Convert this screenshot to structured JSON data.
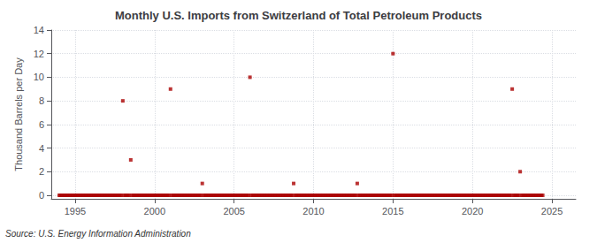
{
  "chart_data": {
    "type": "scatter",
    "title": "Monthly U.S. Imports from Switzerland of Total Petroleum Products",
    "ylabel": "Thousand Barrels per Day",
    "annotation": "Source: U.S. Energy Information Administration",
    "color": "#aa0000",
    "marker": "square",
    "grid": true,
    "xlim": [
      1993.5,
      2026.5
    ],
    "xticks": [
      1995,
      2000,
      2005,
      2010,
      2015,
      2020,
      2025
    ],
    "ylim": [
      -0.3,
      14
    ],
    "yticks": [
      0,
      2,
      4,
      6,
      8,
      10,
      12,
      14
    ],
    "x": [
      1994.0,
      1994.08,
      1994.17,
      1994.25,
      1994.33,
      1994.42,
      1994.5,
      1994.58,
      1994.67,
      1994.75,
      1994.83,
      1994.92,
      1995.0,
      1995.08,
      1995.17,
      1995.25,
      1995.33,
      1995.42,
      1995.5,
      1995.58,
      1995.67,
      1995.75,
      1995.83,
      1995.92,
      1996.0,
      1996.08,
      1996.17,
      1996.25,
      1996.33,
      1996.42,
      1996.5,
      1996.58,
      1996.67,
      1996.75,
      1996.83,
      1996.92,
      1997.0,
      1997.08,
      1997.17,
      1997.25,
      1997.33,
      1997.42,
      1997.5,
      1997.58,
      1997.67,
      1997.75,
      1997.83,
      1997.92,
      1998.0,
      1998.08,
      1998.17,
      1998.25,
      1998.33,
      1998.42,
      1998.5,
      1998.58,
      1998.67,
      1998.75,
      1998.83,
      1998.92,
      1999.0,
      1999.08,
      1999.17,
      1999.25,
      1999.33,
      1999.42,
      1999.5,
      1999.58,
      1999.67,
      1999.75,
      1999.83,
      1999.92,
      2000.0,
      2000.08,
      2000.17,
      2000.25,
      2000.33,
      2000.42,
      2000.5,
      2000.58,
      2000.67,
      2000.75,
      2000.83,
      2000.92,
      2001.0,
      2001.08,
      2001.17,
      2001.25,
      2001.33,
      2001.42,
      2001.5,
      2001.58,
      2001.67,
      2001.75,
      2001.83,
      2001.92,
      2002.0,
      2002.08,
      2002.17,
      2002.25,
      2002.33,
      2002.42,
      2002.5,
      2002.58,
      2002.67,
      2002.75,
      2002.83,
      2002.92,
      2003.0,
      2003.08,
      2003.17,
      2003.25,
      2003.33,
      2003.42,
      2003.5,
      2003.58,
      2003.67,
      2003.75,
      2003.83,
      2003.92,
      2004.0,
      2004.08,
      2004.17,
      2004.25,
      2004.33,
      2004.42,
      2004.5,
      2004.58,
      2004.67,
      2004.75,
      2004.83,
      2004.92,
      2005.0,
      2005.08,
      2005.17,
      2005.25,
      2005.33,
      2005.42,
      2005.5,
      2005.58,
      2005.67,
      2005.75,
      2005.83,
      2005.92,
      2006.0,
      2006.08,
      2006.17,
      2006.25,
      2006.33,
      2006.42,
      2006.5,
      2006.58,
      2006.67,
      2006.75,
      2006.83,
      2006.92,
      2007.0,
      2007.08,
      2007.17,
      2007.25,
      2007.33,
      2007.42,
      2007.5,
      2007.58,
      2007.67,
      2007.75,
      2007.83,
      2007.92,
      2008.0,
      2008.08,
      2008.17,
      2008.25,
      2008.33,
      2008.42,
      2008.5,
      2008.58,
      2008.67,
      2008.75,
      2008.83,
      2008.92,
      2009.0,
      2009.08,
      2009.17,
      2009.25,
      2009.33,
      2009.42,
      2009.5,
      2009.58,
      2009.67,
      2009.75,
      2009.83,
      2009.92,
      2010.0,
      2010.08,
      2010.17,
      2010.25,
      2010.33,
      2010.42,
      2010.5,
      2010.58,
      2010.67,
      2010.75,
      2010.83,
      2010.92,
      2011.0,
      2011.08,
      2011.17,
      2011.25,
      2011.33,
      2011.42,
      2011.5,
      2011.58,
      2011.67,
      2011.75,
      2011.83,
      2011.92,
      2012.0,
      2012.08,
      2012.17,
      2012.25,
      2012.33,
      2012.42,
      2012.5,
      2012.58,
      2012.67,
      2012.75,
      2012.83,
      2012.92,
      2013.0,
      2013.08,
      2013.17,
      2013.25,
      2013.33,
      2013.42,
      2013.5,
      2013.58,
      2013.67,
      2013.75,
      2013.83,
      2013.92,
      2014.0,
      2014.08,
      2014.17,
      2014.25,
      2014.33,
      2014.42,
      2014.5,
      2014.58,
      2014.67,
      2014.75,
      2014.83,
      2014.92,
      2015.0,
      2015.08,
      2015.17,
      2015.25,
      2015.33,
      2015.42,
      2015.5,
      2015.58,
      2015.67,
      2015.75,
      2015.83,
      2015.92,
      2016.0,
      2016.08,
      2016.17,
      2016.25,
      2016.33,
      2016.42,
      2016.5,
      2016.58,
      2016.67,
      2016.75,
      2016.83,
      2016.92,
      2017.0,
      2017.08,
      2017.17,
      2017.25,
      2017.33,
      2017.42,
      2017.5,
      2017.58,
      2017.67,
      2017.75,
      2017.83,
      2017.92,
      2018.0,
      2018.08,
      2018.17,
      2018.25,
      2018.33,
      2018.42,
      2018.5,
      2018.58,
      2018.67,
      2018.75,
      2018.83,
      2018.92,
      2019.0,
      2019.08,
      2019.17,
      2019.25,
      2019.33,
      2019.42,
      2019.5,
      2019.58,
      2019.67,
      2019.75,
      2019.83,
      2019.92,
      2020.0,
      2020.08,
      2020.17,
      2020.25,
      2020.33,
      2020.42,
      2020.5,
      2020.58,
      2020.67,
      2020.75,
      2020.83,
      2020.92,
      2021.0,
      2021.08,
      2021.17,
      2021.25,
      2021.33,
      2021.42,
      2021.5,
      2021.58,
      2021.67,
      2021.75,
      2021.83,
      2021.92,
      2022.0,
      2022.08,
      2022.17,
      2022.25,
      2022.33,
      2022.42,
      2022.5,
      2022.58,
      2022.67,
      2022.75,
      2022.83,
      2022.92,
      2023.0,
      2023.08,
      2023.17,
      2023.25,
      2023.33,
      2023.42,
      2023.5,
      2023.58,
      2023.67,
      2023.75,
      2023.83,
      2023.92,
      2024.0,
      2024.08,
      2024.17,
      2024.25,
      2024.33,
      2024.42
    ],
    "values": [
      0,
      0,
      0,
      0,
      0,
      0,
      0,
      0,
      0,
      0,
      0,
      0,
      0,
      0,
      0,
      0,
      0,
      0,
      0,
      0,
      0,
      0,
      0,
      0,
      0,
      0,
      0,
      0,
      0,
      0,
      0,
      0,
      0,
      0,
      0,
      0,
      0,
      0,
      0,
      0,
      0,
      0,
      0,
      0,
      0,
      0,
      0,
      0,
      8,
      0,
      0,
      0,
      0,
      0,
      3,
      0,
      0,
      0,
      0,
      0,
      0,
      0,
      0,
      0,
      0,
      0,
      0,
      0,
      0,
      0,
      0,
      0,
      0,
      0,
      0,
      0,
      0,
      0,
      0,
      0,
      0,
      0,
      0,
      0,
      9,
      0,
      0,
      0,
      0,
      0,
      0,
      0,
      0,
      0,
      0,
      0,
      0,
      0,
      0,
      0,
      0,
      0,
      0,
      0,
      0,
      0,
      0,
      0,
      1,
      0,
      0,
      0,
      0,
      0,
      0,
      0,
      0,
      0,
      0,
      0,
      0,
      0,
      0,
      0,
      0,
      0,
      0,
      0,
      0,
      0,
      0,
      0,
      0,
      0,
      0,
      0,
      0,
      0,
      0,
      0,
      0,
      0,
      0,
      0,
      10,
      0,
      0,
      0,
      0,
      0,
      0,
      0,
      0,
      0,
      0,
      0,
      0,
      0,
      0,
      0,
      0,
      0,
      0,
      0,
      0,
      0,
      0,
      0,
      0,
      0,
      0,
      0,
      0,
      0,
      0,
      0,
      0,
      1,
      0,
      0,
      0,
      0,
      0,
      0,
      0,
      0,
      0,
      0,
      0,
      0,
      0,
      0,
      0,
      0,
      0,
      0,
      0,
      0,
      0,
      0,
      0,
      0,
      0,
      0,
      0,
      0,
      0,
      0,
      0,
      0,
      0,
      0,
      0,
      0,
      0,
      0,
      0,
      0,
      0,
      0,
      0,
      0,
      0,
      0,
      0,
      1,
      0,
      0,
      0,
      0,
      0,
      0,
      0,
      0,
      0,
      0,
      0,
      0,
      0,
      0,
      0,
      0,
      0,
      0,
      0,
      0,
      0,
      0,
      0,
      0,
      0,
      0,
      12,
      0,
      0,
      0,
      0,
      0,
      0,
      0,
      0,
      0,
      0,
      0,
      0,
      0,
      0,
      0,
      0,
      0,
      0,
      0,
      0,
      0,
      0,
      0,
      0,
      0,
      0,
      0,
      0,
      0,
      0,
      0,
      0,
      0,
      0,
      0,
      0,
      0,
      0,
      0,
      0,
      0,
      0,
      0,
      0,
      0,
      0,
      0,
      0,
      0,
      0,
      0,
      0,
      0,
      0,
      0,
      0,
      0,
      0,
      0,
      0,
      0,
      0,
      0,
      0,
      0,
      0,
      0,
      0,
      0,
      0,
      0,
      0,
      0,
      0,
      0,
      0,
      0,
      0,
      0,
      0,
      0,
      0,
      0,
      0,
      0,
      0,
      0,
      0,
      0,
      9,
      0,
      0,
      0,
      0,
      0,
      2,
      0,
      0,
      0,
      0,
      0,
      0,
      0,
      0,
      0,
      0,
      0,
      0,
      0,
      0,
      0,
      0,
      0
    ]
  }
}
